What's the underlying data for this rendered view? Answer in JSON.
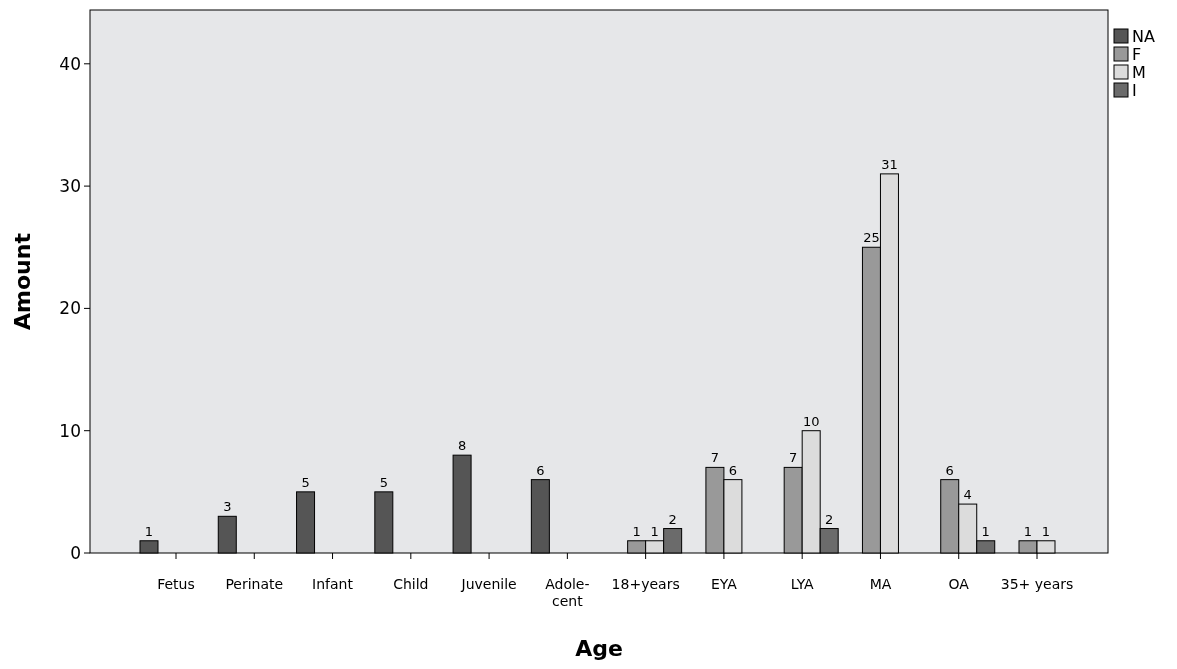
{
  "chart_data": {
    "type": "bar",
    "xlabel": "Age",
    "ylabel": "Amount",
    "categories": [
      "Fetus",
      "Perinate",
      "Infant",
      "Child",
      "Juvenile",
      "Adole-\ncent",
      "18+years",
      "EYA",
      "LYA",
      "MA",
      "OA",
      "35+ years"
    ],
    "series": [
      {
        "name": "NA",
        "color": "#555555",
        "values": [
          1,
          3,
          5,
          5,
          8,
          6,
          0,
          0,
          0,
          0,
          0,
          0
        ],
        "value_labels": [
          "1",
          "3",
          "5",
          "5",
          "8",
          "6",
          null,
          null,
          null,
          null,
          null,
          null
        ]
      },
      {
        "name": "F",
        "color": "#999999",
        "values": [
          0,
          0,
          0,
          0,
          0,
          0,
          1,
          7,
          7,
          25,
          6,
          1
        ],
        "value_labels": [
          null,
          null,
          null,
          null,
          null,
          null,
          "1",
          "7",
          "7",
          "25",
          "6",
          "1"
        ]
      },
      {
        "name": "M",
        "color": "#dcdcdc",
        "values": [
          0,
          0,
          0,
          0,
          0,
          0,
          1,
          6,
          10,
          31,
          4,
          1
        ],
        "value_labels": [
          null,
          null,
          null,
          null,
          null,
          null,
          "1",
          "6",
          "10",
          "31",
          "4",
          "1"
        ]
      },
      {
        "name": "I",
        "color": "#6b6b6b",
        "values": [
          0,
          0,
          0,
          0,
          0,
          0,
          2,
          0,
          2,
          0,
          1,
          0
        ],
        "value_labels": [
          null,
          null,
          null,
          null,
          null,
          null,
          "2",
          null,
          "2",
          null,
          "1",
          null
        ]
      }
    ],
    "ylim": [
      0,
      44.4
    ],
    "yticks": [
      0,
      10,
      20,
      30,
      40
    ],
    "legend": "top right"
  }
}
